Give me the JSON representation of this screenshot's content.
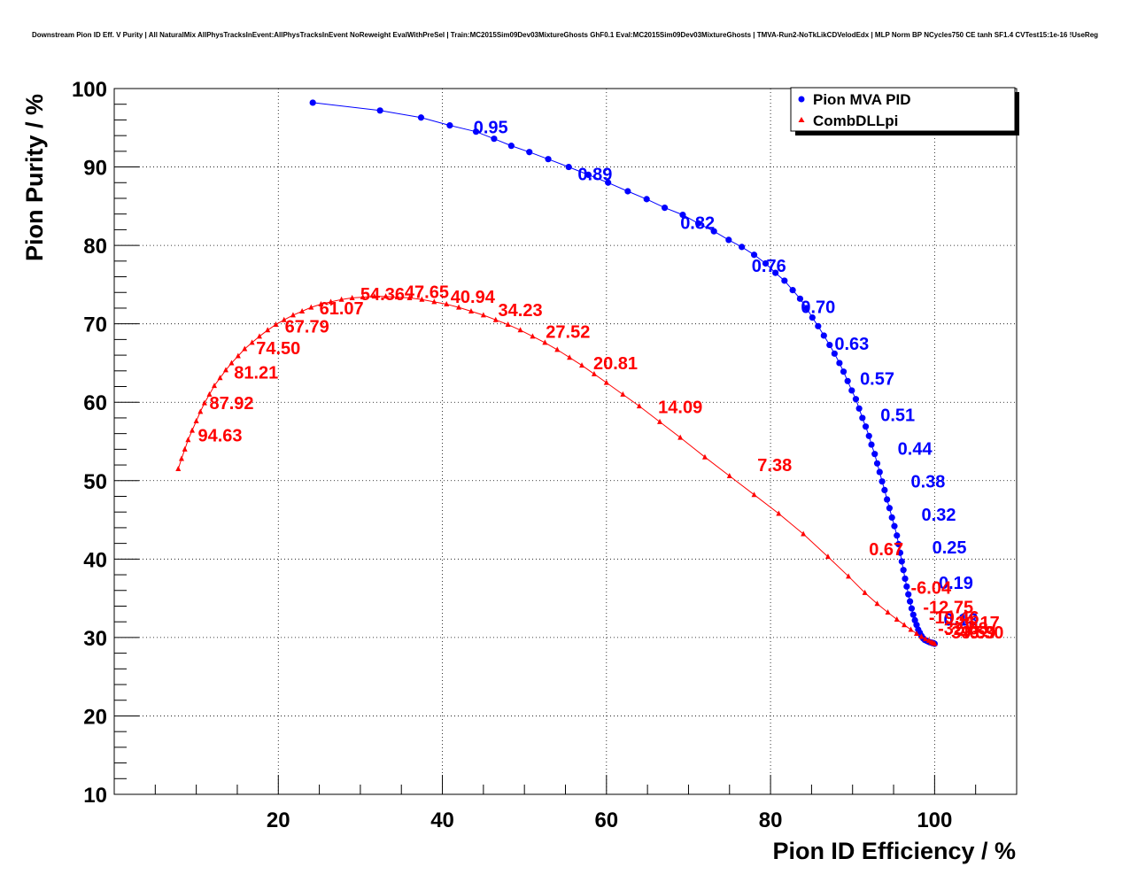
{
  "chart_data": {
    "type": "line",
    "title": "Downstream Pion ID Eff. V Purity | All NaturalMix AllPhysTracksInEvent:AllPhysTracksInEvent NoReweight EvalWithPreSel | Train:MC2015Sim09Dev03MixtureGhosts GhF0.1 Eval:MC2015Sim09Dev03MixtureGhosts | TMVA-Run2-NoTkLikCDVelodEdx | MLP Norm BP NCycles750 CE tanh SF1.4 CVTest15:1e-16 !UseReg",
    "xlabel": "Pion ID Efficiency / %",
    "ylabel": "Pion Purity / %",
    "xlim": [
      0,
      110
    ],
    "ylim": [
      10,
      100
    ],
    "xticks": [
      20,
      40,
      60,
      80,
      100
    ],
    "yticks": [
      10,
      20,
      30,
      40,
      50,
      60,
      70,
      80,
      90,
      100
    ],
    "grid": true,
    "legend_position": "top-right",
    "colors": {
      "mva": "#0000ff",
      "dll": "#ff0000",
      "axis": "#000000",
      "grid": "#000000"
    },
    "series": [
      {
        "name": "Pion MVA PID",
        "marker": "circle",
        "color": "#0000ff",
        "x": [
          24.2,
          32.4,
          37.4,
          40.9,
          44.1,
          46.3,
          48.4,
          50.6,
          52.9,
          55.4,
          57.8,
          60.2,
          62.6,
          64.9,
          67.1,
          69.3,
          71.2,
          73.1,
          74.9,
          76.5,
          78.0,
          79.4,
          80.6,
          81.7,
          82.7,
          83.6,
          84.4,
          85.1,
          85.8,
          86.5,
          87.2,
          87.8,
          88.4,
          88.9,
          89.4,
          89.9,
          90.4,
          90.8,
          91.2,
          91.6,
          92.0,
          92.3,
          92.7,
          93.0,
          93.3,
          93.6,
          93.9,
          94.2,
          94.5,
          94.8,
          95.1,
          95.4,
          95.6,
          95.8,
          96.0,
          96.2,
          96.4,
          96.6,
          96.8,
          97.0,
          97.2,
          97.4,
          97.6,
          97.8,
          98.0,
          98.2,
          98.4,
          98.6,
          98.8,
          99.0,
          99.2,
          99.4,
          99.6,
          99.7,
          99.8,
          99.9,
          100.0
        ],
        "y": [
          98.2,
          97.2,
          96.3,
          95.3,
          94.5,
          93.6,
          92.7,
          91.9,
          91.0,
          90.0,
          89.0,
          88.0,
          86.9,
          85.9,
          84.8,
          83.9,
          82.8,
          81.8,
          80.7,
          79.8,
          78.8,
          77.7,
          76.5,
          75.5,
          74.3,
          73.2,
          72.0,
          70.8,
          69.7,
          68.5,
          67.3,
          66.2,
          65.0,
          63.9,
          62.7,
          61.5,
          60.4,
          59.2,
          58.0,
          56.9,
          55.7,
          54.6,
          53.4,
          52.2,
          51.1,
          49.9,
          48.8,
          47.6,
          46.5,
          45.3,
          44.2,
          43.0,
          41.9,
          40.8,
          39.7,
          38.6,
          37.5,
          36.5,
          35.5,
          34.6,
          33.7,
          32.9,
          32.2,
          31.6,
          31.0,
          30.6,
          30.2,
          29.9,
          29.7,
          29.6,
          29.5,
          29.4,
          29.35,
          29.3,
          29.3,
          29.25,
          29.2
        ],
        "labels": [
          {
            "text": "0.95",
            "x": 43.8,
            "y": 94.3
          },
          {
            "text": "0.89",
            "x": 56.5,
            "y": 88.3
          },
          {
            "text": "0.82",
            "x": 69.0,
            "y": 82.1
          },
          {
            "text": "0.76",
            "x": 77.7,
            "y": 76.6
          },
          {
            "text": "0.70",
            "x": 83.7,
            "y": 71.4
          },
          {
            "text": "0.63",
            "x": 87.8,
            "y": 66.7
          },
          {
            "text": "0.57",
            "x": 90.9,
            "y": 62.2
          },
          {
            "text": "0.51",
            "x": 93.4,
            "y": 57.6
          },
          {
            "text": "0.44",
            "x": 95.5,
            "y": 53.3
          },
          {
            "text": "0.38",
            "x": 97.1,
            "y": 49.1
          },
          {
            "text": "0.32",
            "x": 98.4,
            "y": 44.9
          },
          {
            "text": "0.25",
            "x": 99.7,
            "y": 40.7
          },
          {
            "text": "0.19",
            "x": 100.5,
            "y": 36.2
          },
          {
            "text": "0.13",
            "x": 101.1,
            "y": 31.5
          }
        ]
      },
      {
        "name": "CombDLLpi",
        "marker": "triangle",
        "color": "#ff0000",
        "x": [
          7.8,
          8.2,
          8.6,
          9.0,
          9.5,
          10.0,
          10.5,
          11.0,
          11.6,
          12.2,
          12.9,
          13.6,
          14.3,
          15.1,
          15.9,
          16.8,
          17.7,
          18.7,
          19.7,
          20.7,
          21.8,
          22.9,
          24.0,
          25.2,
          26.4,
          27.7,
          29.0,
          30.3,
          31.7,
          33.1,
          34.5,
          36.0,
          37.5,
          39.0,
          40.5,
          42.0,
          43.5,
          45.0,
          46.5,
          48.0,
          49.5,
          51.0,
          52.5,
          54.0,
          55.5,
          57.0,
          58.5,
          60.0,
          62.0,
          64.0,
          66.5,
          69.0,
          72.0,
          75.0,
          78.0,
          81.0,
          84.0,
          87.0,
          89.5,
          91.5,
          93.0,
          94.3,
          95.4,
          96.3,
          97.1,
          97.8,
          98.4,
          98.9,
          99.3,
          99.6,
          99.8,
          100.0
        ],
        "y": [
          51.5,
          52.8,
          54.0,
          55.2,
          56.4,
          57.6,
          58.8,
          59.9,
          61.0,
          62.1,
          63.1,
          64.1,
          65.0,
          65.9,
          66.8,
          67.6,
          68.4,
          69.2,
          69.9,
          70.5,
          71.1,
          71.6,
          72.1,
          72.5,
          72.8,
          73.1,
          73.3,
          73.4,
          73.5,
          73.5,
          73.4,
          73.3,
          73.1,
          72.8,
          72.5,
          72.1,
          71.6,
          71.1,
          70.5,
          69.9,
          69.2,
          68.4,
          67.6,
          66.7,
          65.7,
          64.7,
          63.6,
          62.5,
          61.0,
          59.5,
          57.5,
          55.5,
          53.0,
          50.6,
          48.2,
          45.8,
          43.2,
          40.3,
          37.8,
          35.7,
          34.3,
          33.2,
          32.3,
          31.6,
          31.0,
          30.5,
          30.1,
          29.8,
          29.6,
          29.4,
          29.3,
          29.2
        ],
        "labels": [
          {
            "text": "94.63",
            "x": 10.2,
            "y": 55.0
          },
          {
            "text": "87.92",
            "x": 11.6,
            "y": 59.1
          },
          {
            "text": "81.21",
            "x": 14.6,
            "y": 63.0
          },
          {
            "text": "74.50",
            "x": 17.3,
            "y": 66.1
          },
          {
            "text": "67.79",
            "x": 20.8,
            "y": 68.9
          },
          {
            "text": "61.07",
            "x": 25.0,
            "y": 71.2
          },
          {
            "text": "54.36",
            "x": 30.0,
            "y": 73.0
          },
          {
            "text": "47.65",
            "x": 35.4,
            "y": 73.3
          },
          {
            "text": "40.94",
            "x": 41.0,
            "y": 72.7
          },
          {
            "text": "34.23",
            "x": 46.8,
            "y": 71.0
          },
          {
            "text": "27.52",
            "x": 52.6,
            "y": 68.2
          },
          {
            "text": "20.81",
            "x": 58.4,
            "y": 64.2
          },
          {
            "text": "14.09",
            "x": 66.3,
            "y": 58.6
          },
          {
            "text": "7.38",
            "x": 78.4,
            "y": 51.2
          },
          {
            "text": "0.67",
            "x": 92.0,
            "y": 40.5
          },
          {
            "text": "-6.04",
            "x": 97.1,
            "y": 35.6
          },
          {
            "text": "-12.75",
            "x": 98.6,
            "y": 33.1
          },
          {
            "text": "-19.46",
            "x": 99.3,
            "y": 31.8
          },
          {
            "text": "-26.17",
            "x": 101.8,
            "y": 31.1
          },
          {
            "text": "-32.88",
            "x": 100.4,
            "y": 30.4
          },
          {
            "text": "-39.59",
            "x": 101.3,
            "y": 29.9
          },
          {
            "text": "-46.30",
            "x": 102.3,
            "y": 29.9
          }
        ]
      }
    ]
  }
}
